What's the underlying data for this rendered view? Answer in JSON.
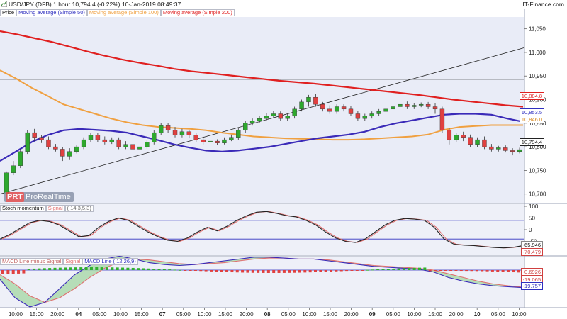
{
  "header": {
    "title": "USD/JPY (DFB)   1 hour   10,794.4 (-0.22%)   10-Jan-2019 08:49:37",
    "brand": "IT-Finance.com"
  },
  "legend": {
    "price": "Price",
    "ma50": "Moving average (Simple 50)",
    "ma100": "Moving average (Simple 100)",
    "ma200": "Moving average (Simple 200)"
  },
  "watermark": {
    "logo": "PRT",
    "text": "ProRealTime"
  },
  "price_axis": {
    "ticks": [
      "11,050",
      "11,000",
      "10,950",
      "10,900",
      "10,850",
      "10,800",
      "10,750",
      "10,700"
    ],
    "tags": [
      {
        "label": "10,884.8",
        "color": "#e02020"
      },
      {
        "label": "10,853.5",
        "color": "#3030c0"
      },
      {
        "label": "10,846.0",
        "color": "#f0a040"
      },
      {
        "label": "10,794.4",
        "color": "#222222"
      }
    ]
  },
  "stoch": {
    "label": "Stoch momentum",
    "signal_label": "Signal",
    "params": "( 14,3,5,3)",
    "ticks": [
      "100",
      "50",
      "0",
      "-50",
      "-100"
    ],
    "tag1": "-65.946",
    "tag2": "-70.479"
  },
  "macd": {
    "label_hist": "MACD Line minus Signal",
    "label_signal": "Signal",
    "label_line": "MACD Line ( 12,26,9)",
    "tag1": "-0.6926",
    "tag2": "-19.065",
    "tag3": "-19.757"
  },
  "time_axis": [
    {
      "label": "10:00",
      "bold": false
    },
    {
      "label": "15:00",
      "bold": false
    },
    {
      "label": "20:00",
      "bold": false
    },
    {
      "label": "04",
      "bold": true
    },
    {
      "label": "05:00",
      "bold": false
    },
    {
      "label": "10:00",
      "bold": false
    },
    {
      "label": "15:00",
      "bold": false
    },
    {
      "label": "07",
      "bold": true
    },
    {
      "label": "05:00",
      "bold": false
    },
    {
      "label": "10:00",
      "bold": false
    },
    {
      "label": "15:00",
      "bold": false
    },
    {
      "label": "20:00",
      "bold": false
    },
    {
      "label": "08",
      "bold": true
    },
    {
      "label": "05:00",
      "bold": false
    },
    {
      "label": "10:00",
      "bold": false
    },
    {
      "label": "15:00",
      "bold": false
    },
    {
      "label": "20:00",
      "bold": false
    },
    {
      "label": "09",
      "bold": true
    },
    {
      "label": "05:00",
      "bold": false
    },
    {
      "label": "10:00",
      "bold": false
    },
    {
      "label": "15:00",
      "bold": false
    },
    {
      "label": "20:00",
      "bold": false
    },
    {
      "label": "10",
      "bold": true
    },
    {
      "label": "05:00",
      "bold": false
    },
    {
      "label": "10:00",
      "bold": false
    }
  ],
  "chart_data": {
    "type": "candlestick",
    "ylim": [
      10680,
      11075
    ],
    "candles": [
      [
        10700,
        10745,
        10690,
        10748
      ],
      [
        10745,
        10760,
        10740,
        10770
      ],
      [
        10760,
        10790,
        10755,
        10795
      ],
      [
        10790,
        10830,
        10785,
        10835
      ],
      [
        10830,
        10820,
        10812,
        10838
      ],
      [
        10820,
        10815,
        10808,
        10825
      ],
      [
        10815,
        10800,
        10795,
        10822
      ],
      [
        10800,
        10795,
        10790,
        10806
      ],
      [
        10795,
        10780,
        10770,
        10800
      ],
      [
        10780,
        10790,
        10772,
        10797
      ],
      [
        10790,
        10800,
        10786,
        10804
      ],
      [
        10800,
        10815,
        10795,
        10820
      ],
      [
        10815,
        10825,
        10810,
        10830
      ],
      [
        10825,
        10815,
        10810,
        10830
      ],
      [
        10815,
        10810,
        10805,
        10822
      ],
      [
        10810,
        10815,
        10806,
        10820
      ],
      [
        10815,
        10800,
        10795,
        10820
      ],
      [
        10800,
        10805,
        10795,
        10812
      ],
      [
        10805,
        10795,
        10790,
        10810
      ],
      [
        10795,
        10800,
        10790,
        10806
      ],
      [
        10800,
        10810,
        10796,
        10815
      ],
      [
        10810,
        10830,
        10805,
        10835
      ],
      [
        10830,
        10845,
        10825,
        10850
      ],
      [
        10845,
        10835,
        10830,
        10850
      ],
      [
        10835,
        10825,
        10820,
        10842
      ],
      [
        10825,
        10832,
        10820,
        10838
      ],
      [
        10832,
        10825,
        10818,
        10836
      ],
      [
        10825,
        10815,
        10810,
        10830
      ],
      [
        10815,
        10810,
        10805,
        10822
      ],
      [
        10810,
        10812,
        10806,
        10818
      ],
      [
        10812,
        10808,
        10804,
        10816
      ],
      [
        10808,
        10815,
        10805,
        10820
      ],
      [
        10815,
        10820,
        10812,
        10826
      ],
      [
        10820,
        10835,
        10815,
        10840
      ],
      [
        10835,
        10850,
        10830,
        10855
      ],
      [
        10850,
        10855,
        10845,
        10860
      ],
      [
        10855,
        10860,
        10850,
        10866
      ],
      [
        10860,
        10865,
        10855,
        10872
      ],
      [
        10865,
        10870,
        10862,
        10876
      ],
      [
        10870,
        10860,
        10855,
        10875
      ],
      [
        10860,
        10865,
        10855,
        10870
      ],
      [
        10865,
        10880,
        10860,
        10885
      ],
      [
        10880,
        10895,
        10875,
        10900
      ],
      [
        10895,
        10905,
        10885,
        10910
      ],
      [
        10905,
        10890,
        10885,
        10912
      ],
      [
        10890,
        10880,
        10875,
        10895
      ],
      [
        10880,
        10875,
        10870,
        10888
      ],
      [
        10875,
        10885,
        10870,
        10890
      ],
      [
        10885,
        10880,
        10875,
        10890
      ],
      [
        10880,
        10870,
        10865,
        10886
      ],
      [
        10870,
        10860,
        10855,
        10876
      ],
      [
        10860,
        10865,
        10855,
        10870
      ],
      [
        10865,
        10870,
        10860,
        10875
      ],
      [
        10870,
        10875,
        10865,
        10880
      ],
      [
        10875,
        10880,
        10870,
        10884
      ],
      [
        10880,
        10885,
        10876,
        10890
      ],
      [
        10885,
        10890,
        10880,
        10895
      ],
      [
        10890,
        10885,
        10880,
        10896
      ],
      [
        10885,
        10888,
        10880,
        10892
      ],
      [
        10888,
        10890,
        10884,
        10894
      ],
      [
        10890,
        10885,
        10880,
        10895
      ],
      [
        10885,
        10880,
        10870,
        10892
      ],
      [
        10880,
        10835,
        10830,
        10885
      ],
      [
        10835,
        10815,
        10805,
        10840
      ],
      [
        10815,
        10825,
        10810,
        10830
      ],
      [
        10825,
        10820,
        10812,
        10832
      ],
      [
        10820,
        10805,
        10800,
        10826
      ],
      [
        10805,
        10815,
        10800,
        10820
      ],
      [
        10815,
        10800,
        10795,
        10822
      ],
      [
        10800,
        10795,
        10790,
        10806
      ],
      [
        10795,
        10798,
        10790,
        10802
      ],
      [
        10798,
        10792,
        10788,
        10803
      ],
      [
        10792,
        10790,
        10782,
        10797
      ],
      [
        10790,
        10794,
        10786,
        10798
      ]
    ],
    "ma50": [
      10770,
      10790,
      10810,
      10825,
      10835,
      10838,
      10836,
      10834,
      10830,
      10822,
      10814,
      10805,
      10798,
      10792,
      10790,
      10792,
      10796,
      10800,
      10806,
      10812,
      10818,
      10822,
      10826,
      10832,
      10842,
      10850,
      10856,
      10862,
      10868,
      10870,
      10870,
      10868,
      10860,
      10853
    ],
    "ma100": [
      10962,
      10945,
      10925,
      10908,
      10890,
      10880,
      10870,
      10860,
      10852,
      10846,
      10842,
      10840,
      10838,
      10835,
      10830,
      10826,
      10822,
      10820,
      10818,
      10817,
      10816,
      10815,
      10815,
      10816,
      10818,
      10820,
      10822,
      10826,
      10836,
      10842,
      10844,
      10846,
      10846,
      10846
    ],
    "ma200": [
      11045,
      11038,
      11030,
      11022,
      11012,
      11002,
      10993,
      10985,
      10978,
      10972,
      10965,
      10960,
      10956,
      10952,
      10948,
      10944,
      10940,
      10937,
      10934,
      10930,
      10926,
      10922,
      10918,
      10914,
      10910,
      10905,
      10900,
      10896,
      10892,
      10888,
      10885
    ],
    "trendline": {
      "from": [
        10700,
        "start"
      ],
      "to": [
        11010,
        "end"
      ]
    },
    "hline": 10943
  }
}
